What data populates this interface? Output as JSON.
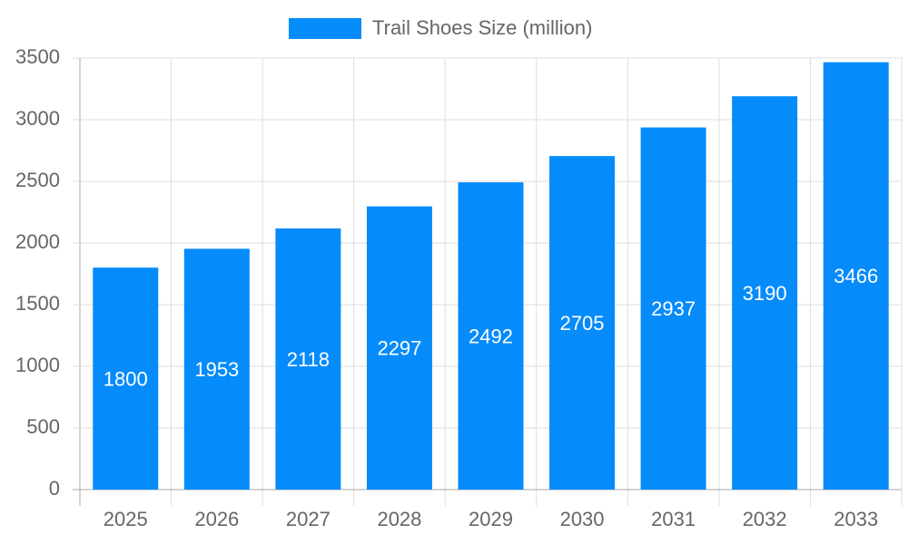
{
  "chart_data": {
    "type": "bar",
    "categories": [
      "2025",
      "2026",
      "2027",
      "2028",
      "2029",
      "2030",
      "2031",
      "2032",
      "2033"
    ],
    "series": [
      {
        "name": "Trail Shoes Size (million)",
        "color": "#068bfa",
        "values": [
          1800,
          1953,
          2118,
          2297,
          2492,
          2705,
          2937,
          3190,
          3466
        ]
      }
    ],
    "ylim": [
      0,
      3500
    ],
    "yticks": [
      0,
      500,
      1000,
      1500,
      2000,
      2500,
      3000,
      3500
    ],
    "grid": true,
    "legend": "top",
    "data_labels": true
  }
}
